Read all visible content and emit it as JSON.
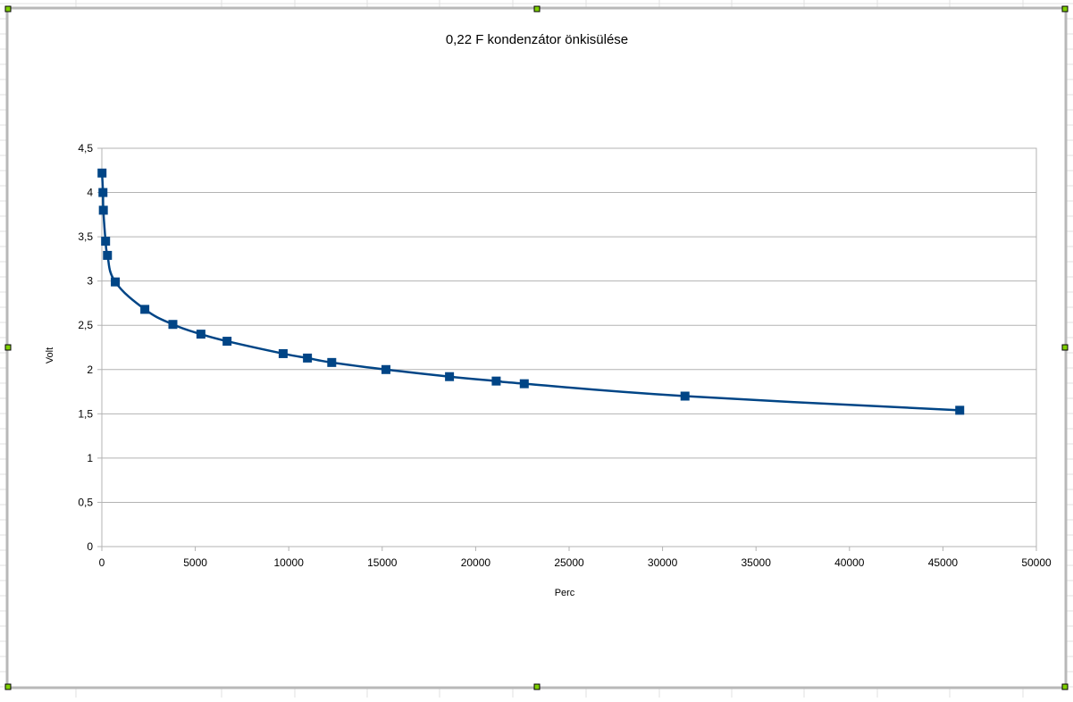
{
  "chart_data": {
    "type": "scatter",
    "title": "0,22 F kondenzátor önkisülése",
    "xlabel": "Perc",
    "ylabel": "Volt",
    "xlim": [
      0,
      50000
    ],
    "ylim": [
      0,
      4.5
    ],
    "x_ticks": [
      0,
      5000,
      10000,
      15000,
      20000,
      25000,
      30000,
      35000,
      40000,
      45000,
      50000
    ],
    "x_tick_labels": [
      "0",
      "5000",
      "10000",
      "15000",
      "20000",
      "25000",
      "30000",
      "35000",
      "40000",
      "45000",
      "50000"
    ],
    "y_ticks": [
      0,
      0.5,
      1,
      1.5,
      2,
      2.5,
      3,
      3.5,
      4,
      4.5
    ],
    "y_tick_labels": [
      "0",
      "0,5",
      "1",
      "1,5",
      "2",
      "2,5",
      "3",
      "3,5",
      "4",
      "4,5"
    ],
    "grid": true,
    "legend": "none",
    "smooth": true,
    "series": [
      {
        "color": "#004586",
        "marker": "square",
        "x": [
          10,
          60,
          80,
          200,
          300,
          720,
          2300,
          3800,
          5300,
          6700,
          9700,
          11000,
          12300,
          15200,
          18600,
          21100,
          22600,
          31200,
          45900
        ],
        "y": [
          4.22,
          4.0,
          3.8,
          3.45,
          3.29,
          2.99,
          2.68,
          2.51,
          2.4,
          2.32,
          2.18,
          2.13,
          2.08,
          2.0,
          1.92,
          1.87,
          1.84,
          1.7,
          1.54
        ]
      }
    ]
  }
}
